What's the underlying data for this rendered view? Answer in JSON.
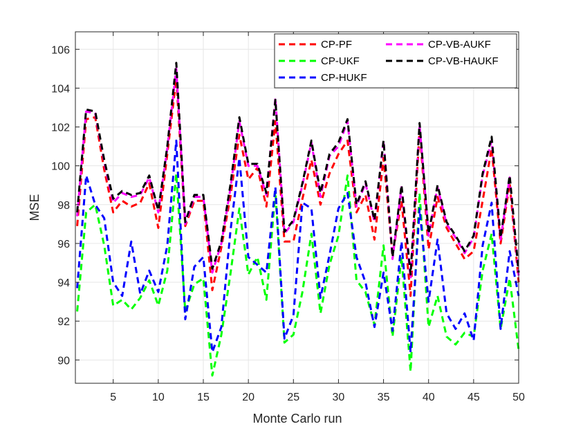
{
  "chart_data": {
    "type": "line",
    "title": "",
    "xlabel": "Monte Carlo run",
    "ylabel": "MSE",
    "xlim": [
      0.8,
      50
    ],
    "ylim": [
      88.8,
      106.9
    ],
    "xticks": [
      5,
      10,
      15,
      20,
      25,
      30,
      35,
      40,
      45,
      50
    ],
    "yticks": [
      90,
      92,
      94,
      96,
      98,
      100,
      102,
      104,
      106
    ],
    "grid": true,
    "legend_position": "top-right",
    "legend_columns": 2,
    "x": [
      1,
      2,
      3,
      4,
      5,
      6,
      7,
      8,
      9,
      10,
      11,
      12,
      13,
      14,
      15,
      16,
      17,
      18,
      19,
      20,
      21,
      22,
      23,
      24,
      25,
      26,
      27,
      28,
      29,
      30,
      31,
      32,
      33,
      34,
      35,
      36,
      37,
      38,
      39,
      40,
      41,
      42,
      43,
      44,
      45,
      46,
      47,
      48,
      49,
      50
    ],
    "series": [
      {
        "name": "CP-PF",
        "color": "#ff0000",
        "values": [
          96.9,
          102.4,
          102.5,
          99.8,
          97.6,
          98.2,
          97.9,
          98.1,
          99.1,
          96.8,
          100.6,
          104.5,
          96.9,
          98.2,
          98.2,
          93.6,
          95.8,
          98.4,
          101.6,
          99.3,
          99.9,
          97.9,
          102.3,
          96.1,
          96.1,
          98.3,
          100.3,
          98.0,
          99.6,
          100.6,
          101.3,
          97.6,
          98.5,
          96.2,
          100.4,
          95.4,
          98.2,
          93.3,
          101.9,
          95.7,
          98.4,
          96.8,
          96.0,
          95.2,
          95.6,
          98.2,
          100.9,
          96.0,
          99.1,
          94.0
        ]
      },
      {
        "name": "CP-UKF",
        "color": "#00ff00",
        "values": [
          92.5,
          97.6,
          98.0,
          95.9,
          92.8,
          93.1,
          92.6,
          93.2,
          94.1,
          92.8,
          94.6,
          99.6,
          92.5,
          93.9,
          94.2,
          89.2,
          91.3,
          94.4,
          97.8,
          94.4,
          95.3,
          93.1,
          98.7,
          90.9,
          91.3,
          93.5,
          96.5,
          92.4,
          94.9,
          96.4,
          99.5,
          94.1,
          93.5,
          91.8,
          95.9,
          91.2,
          95.3,
          89.4,
          98.6,
          91.7,
          93.3,
          91.2,
          90.8,
          91.4,
          91.2,
          94.6,
          96.5,
          91.6,
          94.2,
          90.5
        ]
      },
      {
        "name": "CP-HUKF",
        "color": "#0000ff",
        "values": [
          93.7,
          99.5,
          98.0,
          97.3,
          94.0,
          93.3,
          96.1,
          93.4,
          94.6,
          93.5,
          95.9,
          101.3,
          92.1,
          94.8,
          95.3,
          90.4,
          91.7,
          96.6,
          100.4,
          95.3,
          94.9,
          94.5,
          98.9,
          91.1,
          92.3,
          98.1,
          97.8,
          93.2,
          95.4,
          97.8,
          98.6,
          95.3,
          94.0,
          91.7,
          94.5,
          91.5,
          96.1,
          90.4,
          97.8,
          93.0,
          96.2,
          92.4,
          91.6,
          92.4,
          91.0,
          95.9,
          98.1,
          91.6,
          95.6,
          93.3
        ]
      },
      {
        "name": "CP-VB-AUKF",
        "color": "#ff00ff",
        "values": [
          97.4,
          102.8,
          102.7,
          100.2,
          98.1,
          98.6,
          98.4,
          98.5,
          99.4,
          97.6,
          100.9,
          105.0,
          97.0,
          98.4,
          98.4,
          94.5,
          96.0,
          98.8,
          102.3,
          100.0,
          100.0,
          98.5,
          103.5,
          96.5,
          97.1,
          99.0,
          101.2,
          98.4,
          100.5,
          101.0,
          102.3,
          97.9,
          99.1,
          97.1,
          101.3,
          95.2,
          98.9,
          94.2,
          102.1,
          96.4,
          98.9,
          97.0,
          96.3,
          95.5,
          96.3,
          99.5,
          101.3,
          96.2,
          99.4,
          94.3
        ]
      },
      {
        "name": "CP-VB-HAUKF",
        "color": "#000000",
        "values": [
          97.6,
          102.9,
          102.8,
          100.3,
          98.3,
          98.7,
          98.5,
          98.6,
          99.5,
          97.7,
          101.0,
          105.3,
          97.1,
          98.5,
          98.5,
          94.7,
          96.1,
          99.0,
          102.5,
          100.1,
          100.1,
          98.6,
          103.4,
          96.6,
          97.2,
          99.1,
          101.3,
          98.6,
          100.6,
          101.2,
          102.4,
          98.0,
          99.2,
          97.2,
          101.3,
          95.3,
          99.0,
          94.4,
          102.2,
          96.5,
          99.0,
          97.1,
          96.4,
          95.6,
          96.4,
          99.6,
          101.5,
          96.3,
          99.5,
          94.5
        ]
      }
    ]
  }
}
